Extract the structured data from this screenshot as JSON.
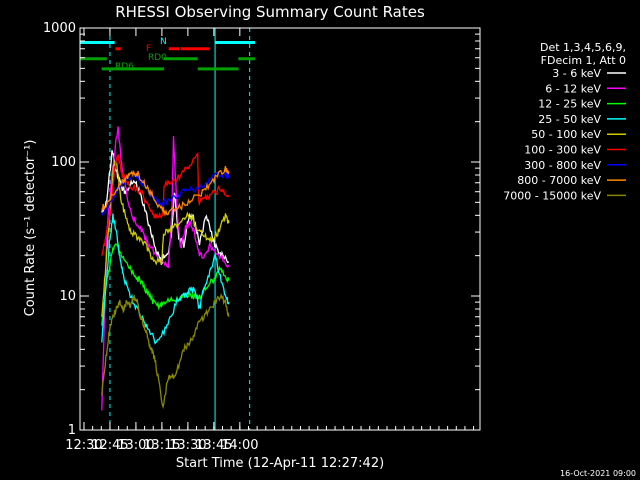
{
  "colors": {
    "bg": "#000000",
    "axis": "#ffffff",
    "cyan": "#00ffff",
    "red": "#ff0000",
    "green": "#00a000"
  },
  "chart_data": {
    "type": "line",
    "title": "RHESSI Observing Summary Count Rates",
    "xlabel": "Start Time (12-Apr-11 12:27:42)",
    "ylabel": "Count Rate (s⁻¹ detector⁻¹)",
    "yscale": "log",
    "xlim": [
      0,
      231
    ],
    "ylim": [
      1,
      1000
    ],
    "x_units": "minutes since 12:27:42",
    "xticks": [
      {
        "x": 2.3,
        "label": "12:30"
      },
      {
        "x": 17.3,
        "label": "12:45"
      },
      {
        "x": 32.3,
        "label": "13:00"
      },
      {
        "x": 47.3,
        "label": "13:15"
      },
      {
        "x": 62.3,
        "label": "13:30"
      },
      {
        "x": 77.3,
        "label": "13:45"
      },
      {
        "x": 92.3,
        "label": "14:00"
      }
    ],
    "yticks": [
      {
        "y": 1,
        "label": "1"
      },
      {
        "y": 10,
        "label": "10"
      },
      {
        "y": 100,
        "label": "100"
      },
      {
        "y": 1000,
        "label": "1000"
      }
    ],
    "legend_header": [
      "Det 1,3,4,5,6,9,",
      "FDecim 1, Att 0"
    ],
    "footer": "16-Oct-2021 09:00",
    "flags": [
      {
        "label": "N",
        "color": "#00ffff",
        "y": 780,
        "segments": [
          [
            0,
            20
          ],
          [
            78,
            101
          ]
        ]
      },
      {
        "label": "F",
        "color": "#ff0000",
        "y": 700,
        "segments": [
          [
            20.5,
            23.5
          ],
          [
            51.2,
            57.2
          ],
          [
            58.2,
            74.5
          ]
        ]
      },
      {
        "label": "RD0",
        "color": "#00a000",
        "y": 590,
        "segments": [
          [
            0,
            15.5
          ],
          [
            48.5,
            68
          ],
          [
            91.5,
            101
          ]
        ]
      },
      {
        "label": "RD6",
        "color": "#00a000",
        "y": 495,
        "segments": [
          [
            12.5,
            48.5
          ],
          [
            68,
            91.5
          ]
        ]
      }
    ],
    "vlines": [
      {
        "x": 17.3,
        "dashed": true
      },
      {
        "x": 78.0,
        "dashed": false
      },
      {
        "x": 98.0,
        "dashed": true
      }
    ],
    "series": [
      {
        "name": "3 - 6 keV",
        "color": "#ffffff",
        "x": [
          12.6,
          15.5,
          18.5,
          20.0,
          22.0,
          24.0,
          26.5,
          29.0,
          32.0,
          35.0,
          38.0,
          41.0,
          44.0,
          47.0,
          48.5,
          51.0,
          53.0,
          54.5,
          57.0,
          60.0,
          63.0,
          65.5,
          69.0,
          73.0,
          76.5,
          79.0,
          82.0,
          86.0
        ],
        "y": [
          42,
          50,
          125,
          95,
          78,
          65,
          60,
          70,
          72,
          56,
          42,
          30,
          22,
          18,
          20,
          20,
          30,
          60,
          28,
          24,
          40,
          38,
          25,
          40,
          28,
          22,
          20,
          18
        ]
      },
      {
        "name": "6 - 12 keV",
        "color": "#ff00ff",
        "x": [
          12.6,
          15.5,
          18.0,
          20.0,
          22.0,
          24.0,
          26.0,
          28.0,
          31.0,
          34.0,
          37.0,
          40.0,
          44.0,
          48.5,
          51.0,
          53.0,
          54.0,
          56.0,
          58.0,
          61.0,
          63.5,
          66.0,
          69.0,
          72.0,
          75.0,
          78.0,
          82.0,
          86.0
        ],
        "y": [
          1.4,
          30,
          70,
          120,
          180,
          95,
          70,
          50,
          38,
          33,
          28,
          24,
          20,
          17,
          17,
          40,
          150,
          45,
          22,
          32,
          35,
          30,
          20,
          20,
          24,
          21,
          19,
          17
        ]
      },
      {
        "name": "12 - 25 keV",
        "color": "#00ff00",
        "x": [
          12.6,
          15.0,
          18.0,
          20.0,
          23.0,
          26.0,
          29.0,
          32.0,
          35.0,
          38.0,
          41.0,
          44.0,
          47.0,
          48.5,
          52.0,
          56.0,
          60.0,
          64.0,
          67.0,
          69.5,
          73.0,
          77.0,
          80.0,
          83.0,
          86.0
        ],
        "y": [
          6.0,
          12,
          19,
          25,
          21,
          18,
          16,
          14,
          13,
          11,
          9.5,
          8.5,
          8.5,
          9,
          9.2,
          9.5,
          10,
          10,
          10,
          10,
          12,
          13,
          16,
          15,
          13
        ]
      },
      {
        "name": "25 - 50 keV",
        "color": "#00ffff",
        "x": [
          12.6,
          15.0,
          17.0,
          19.0,
          21.0,
          23.0,
          25.0,
          28.0,
          31.0,
          34.0,
          37.0,
          40.0,
          44.0,
          48.5,
          52.0,
          56.0,
          60.0,
          63.0,
          66.0,
          69.0,
          72.0,
          75.0,
          78.0,
          81.0,
          84.0,
          86.0
        ],
        "y": [
          4.5,
          12,
          25,
          40,
          30,
          20,
          14,
          11,
          9,
          7.5,
          6.5,
          5.5,
          4.5,
          5.5,
          7,
          9,
          10,
          11,
          11,
          8,
          12,
          15,
          20,
          14,
          10,
          9
        ]
      },
      {
        "name": "50 - 100 keV",
        "color": "#cccc00",
        "x": [
          12.6,
          15.0,
          17.5,
          19.5,
          21.5,
          23.5,
          26.0,
          29.0,
          32.0,
          35.0,
          38.0,
          41.0,
          44.0,
          47.0,
          48.5,
          52.0,
          56.0,
          60.0,
          63.0,
          66.0,
          69.0,
          72.0,
          75.0,
          78.0,
          81.0,
          84.0,
          86.0
        ],
        "y": [
          7,
          18,
          45,
          100,
          90,
          55,
          40,
          30,
          28,
          26,
          24,
          20,
          18,
          18,
          30,
          32,
          34,
          38,
          40,
          36,
          30,
          28,
          26,
          28,
          32,
          40,
          35
        ]
      },
      {
        "name": "100 - 300 keV",
        "color": "#ff0000",
        "x": [
          12.6,
          15.0,
          18.0,
          20.0,
          22.0,
          24.0,
          27.0,
          30.0,
          33.0,
          36.0,
          39.0,
          42.0,
          45.0,
          48.0,
          48.5,
          52.0,
          56.0,
          60.0,
          64.0,
          68.0,
          68.5,
          71.0,
          74.0,
          77.0,
          80.0,
          83.0,
          86.0
        ],
        "y": [
          20,
          28,
          45,
          90,
          110,
          82,
          70,
          65,
          62,
          58,
          48,
          40,
          38,
          40,
          68,
          70,
          75,
          85,
          95,
          110,
          50,
          52,
          55,
          58,
          62,
          60,
          55
        ]
      },
      {
        "name": "300 - 800 keV",
        "color": "#0000ff",
        "x": [
          12.6,
          15.0,
          18.0,
          21.0,
          24.0,
          27.0,
          30.0,
          33.0,
          36.0,
          39.0,
          42.0,
          45.0,
          48.0,
          48.5,
          52.0,
          56.0,
          60.0,
          64.0,
          68.0,
          72.0,
          76.0,
          80.0,
          84.0,
          86.0
        ],
        "y": [
          40,
          45,
          52,
          60,
          68,
          75,
          80,
          78,
          70,
          62,
          55,
          50,
          48,
          50,
          52,
          55,
          60,
          62,
          64,
          68,
          75,
          80,
          82,
          80
        ]
      },
      {
        "name": "800 - 7000 keV",
        "color": "#ff8800",
        "x": [
          12.6,
          15.0,
          18.0,
          21.0,
          24.0,
          27.0,
          30.0,
          33.0,
          36.0,
          39.0,
          42.0,
          45.0,
          48.0,
          48.5,
          52.0,
          56.0,
          60.0,
          64.0,
          68.0,
          72.0,
          76.0,
          80.0,
          84.0,
          86.0
        ],
        "y": [
          45,
          48,
          55,
          62,
          70,
          78,
          84,
          82,
          74,
          64,
          56,
          48,
          44,
          42,
          43,
          45,
          48,
          52,
          56,
          62,
          72,
          82,
          88,
          85
        ]
      },
      {
        "name": "7000 - 15000 keV",
        "color": "#888800",
        "x": [
          12.6,
          15.0,
          17.0,
          19.0,
          21.0,
          23.0,
          25.0,
          27.0,
          29.0,
          31.0,
          33.0,
          35.0,
          37.0,
          39.0,
          41.0,
          43.0,
          45.0,
          48.0,
          51.0,
          54.0,
          57.0,
          60.0,
          63.0,
          66.0,
          69.0,
          72.0,
          75.0,
          78.0,
          81.0,
          84.0,
          86.0
        ],
        "y": [
          1.8,
          3.5,
          5.5,
          7,
          8,
          9,
          8,
          9,
          8.5,
          10,
          9,
          7,
          6,
          5,
          4,
          3.5,
          2.5,
          1.5,
          2.5,
          2.5,
          3,
          4,
          4.5,
          5,
          6.5,
          7,
          8,
          9,
          10,
          9,
          7
        ]
      }
    ]
  }
}
